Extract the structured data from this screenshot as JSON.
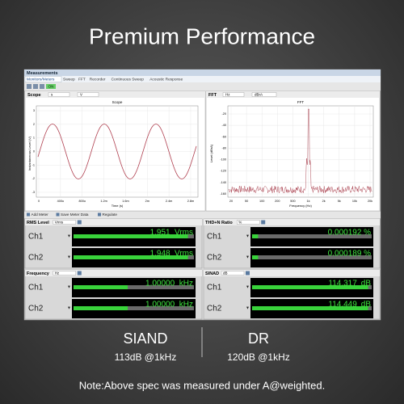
{
  "header": {
    "title": "Premium Performance"
  },
  "app": {
    "title": "Measurements",
    "tabs": [
      "Monitors/Meters",
      "Sweep",
      "FFT",
      "Recorder",
      "Continuous Sweep",
      "Acoustic Response"
    ],
    "toolbar_badge": "ON",
    "scope": {
      "label": "Scope",
      "x_unit": "s",
      "y_unit": "V",
      "chart_title": "Scope",
      "y_axis_label": "Instantaneous Level (V)",
      "x_axis_label": "Time (s)",
      "yticks": [
        3,
        2,
        1,
        0,
        -1,
        -2,
        -3
      ],
      "xticks": [
        "0",
        "400u",
        "800u",
        "1.2m",
        "1.6m",
        "2m",
        "2.4m",
        "2.8m"
      ]
    },
    "fft": {
      "label": "FFT",
      "x_unit": "Hz",
      "y_unit": "dBrA",
      "chart_title": "FFT",
      "y_axis_label": "Level (dBrA)",
      "x_axis_label": "Frequency (Hz)",
      "yticks": [
        -20,
        -40,
        -60,
        -80,
        -100,
        -120,
        -140,
        -160
      ],
      "xticks": [
        "20",
        "50",
        "100",
        "200",
        "500",
        "1k",
        "2k",
        "5k",
        "10k",
        "20k"
      ]
    },
    "meter_toolbar": [
      "Add Meter",
      "Save Meter Data",
      "Regulate"
    ],
    "meters": [
      {
        "name": "RMS Level",
        "selector": "Vrms",
        "reading_unit": "Vrms",
        "channels": [
          {
            "label": "Ch1",
            "reading": "1.951"
          },
          {
            "label": "Ch2",
            "reading": "1.948"
          }
        ]
      },
      {
        "name": "THD+N Ratio",
        "selector": "%",
        "reading_unit": "%",
        "channels": [
          {
            "label": "Ch1",
            "reading": "0.000192"
          },
          {
            "label": "Ch2",
            "reading": "0.000189"
          }
        ]
      },
      {
        "name": "Frequency",
        "selector": "Hz",
        "reading_unit": "kHz",
        "channels": [
          {
            "label": "Ch1",
            "reading": "1.00000"
          },
          {
            "label": "Ch2",
            "reading": "1.00000"
          }
        ]
      },
      {
        "name": "SINAD",
        "selector": "dB",
        "reading_unit": "dB",
        "channels": [
          {
            "label": "Ch1",
            "reading": "114.317"
          },
          {
            "label": "Ch2",
            "reading": "114.449"
          }
        ]
      }
    ]
  },
  "specs": [
    {
      "name": "SIAND",
      "value": "113dB @1kHz"
    },
    {
      "name": "DR",
      "value": "120dB @1kHz"
    }
  ],
  "note": "Note:Above spec was measured under A@weighted."
}
